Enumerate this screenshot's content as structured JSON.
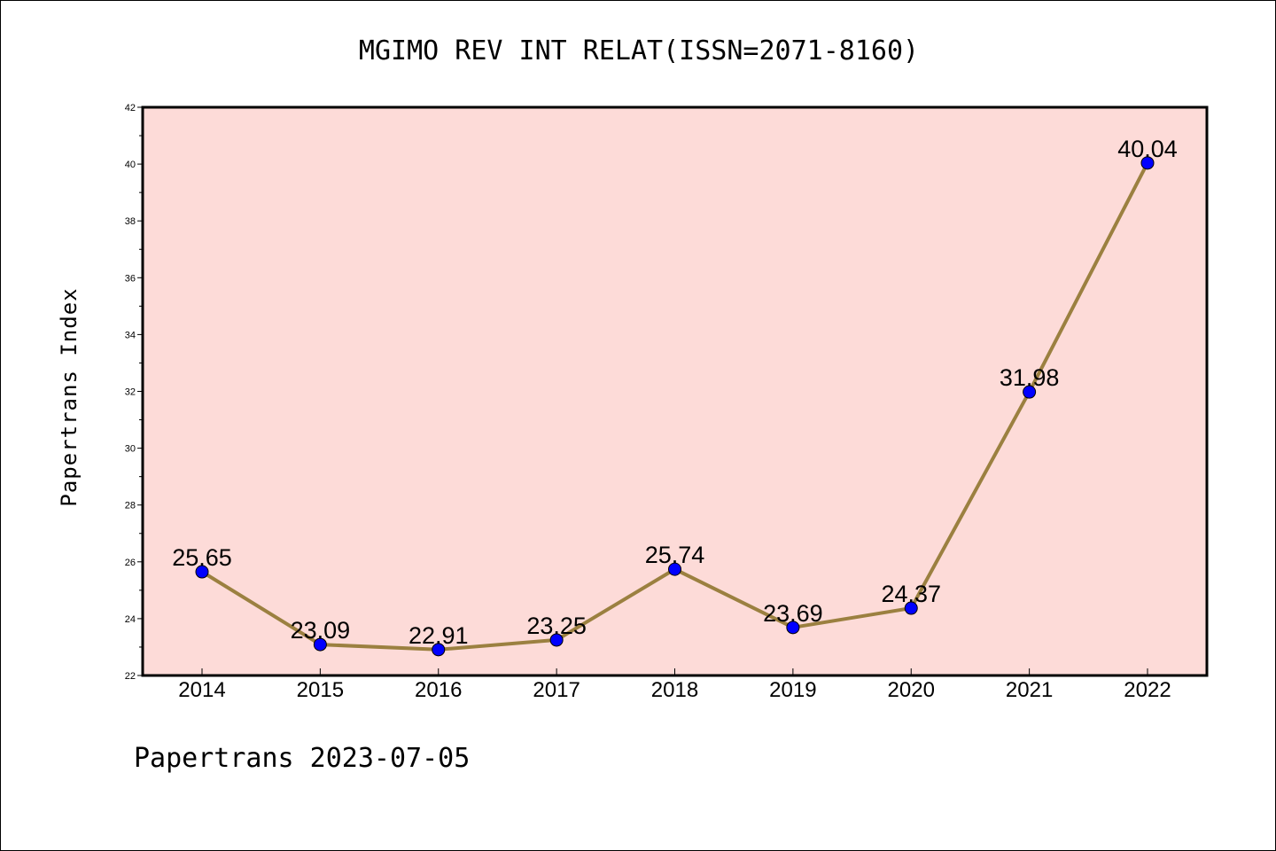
{
  "chart_data": {
    "type": "line",
    "title": "MGIMO REV INT RELAT(ISSN=2071-8160)",
    "xlabel": "",
    "ylabel": "Papertrans Index",
    "footer": "Papertrans 2023-07-05",
    "categories": [
      "2014",
      "2015",
      "2016",
      "2017",
      "2018",
      "2019",
      "2020",
      "2021",
      "2022"
    ],
    "values": [
      25.65,
      23.09,
      22.91,
      23.25,
      25.74,
      23.69,
      24.37,
      31.98,
      40.04
    ],
    "data_labels": [
      "25.65",
      "23.09",
      "22.91",
      "23.25",
      "25.74",
      "23.69",
      "24.37",
      "31.98",
      "40.04"
    ],
    "ylim": [
      22,
      42
    ],
    "yticks": [
      "22",
      "24",
      "26",
      "28",
      "30",
      "32",
      "34",
      "36",
      "38",
      "40",
      "42"
    ],
    "yminor_step": 1,
    "grid": false,
    "legend": "none",
    "colors": {
      "plot_background": "#fddbd8",
      "line": "#9b8040",
      "marker": "#0000ff",
      "axis": "#000000"
    }
  }
}
